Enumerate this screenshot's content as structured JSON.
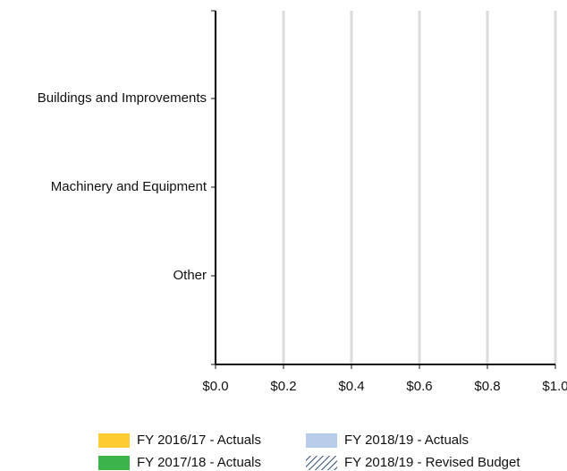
{
  "chart_data": {
    "type": "bar",
    "orientation": "horizontal",
    "categories": [
      "Buildings and Improvements",
      "Machinery and Equipment",
      "Other"
    ],
    "series": [
      {
        "name": "FY 2016/17 - Actuals",
        "color": "#ffcc33",
        "values": [
          0,
          0,
          0
        ]
      },
      {
        "name": "FY 2017/18 - Actuals",
        "color": "#3cb44b",
        "values": [
          0,
          0,
          0
        ]
      },
      {
        "name": "FY 2018/19 - Actuals",
        "color": "#b8cdea",
        "values": [
          0,
          0,
          0
        ]
      },
      {
        "name": "FY 2018/19 - Revised Budget",
        "color": "#2e4a7a",
        "pattern": "hatch",
        "values": [
          0,
          0,
          0
        ]
      }
    ],
    "xlim": [
      0,
      1
    ],
    "xticks": [
      {
        "value": 0,
        "label": "$0.0"
      },
      {
        "value": 0.2,
        "label": "$0.2"
      },
      {
        "value": 0.4,
        "label": "$0.4"
      },
      {
        "value": 0.6,
        "label": "$0.6"
      },
      {
        "value": 0.8,
        "label": "$0.8"
      },
      {
        "value": 1,
        "label": "$1.0"
      }
    ],
    "grid": true,
    "legend": "bottom"
  }
}
